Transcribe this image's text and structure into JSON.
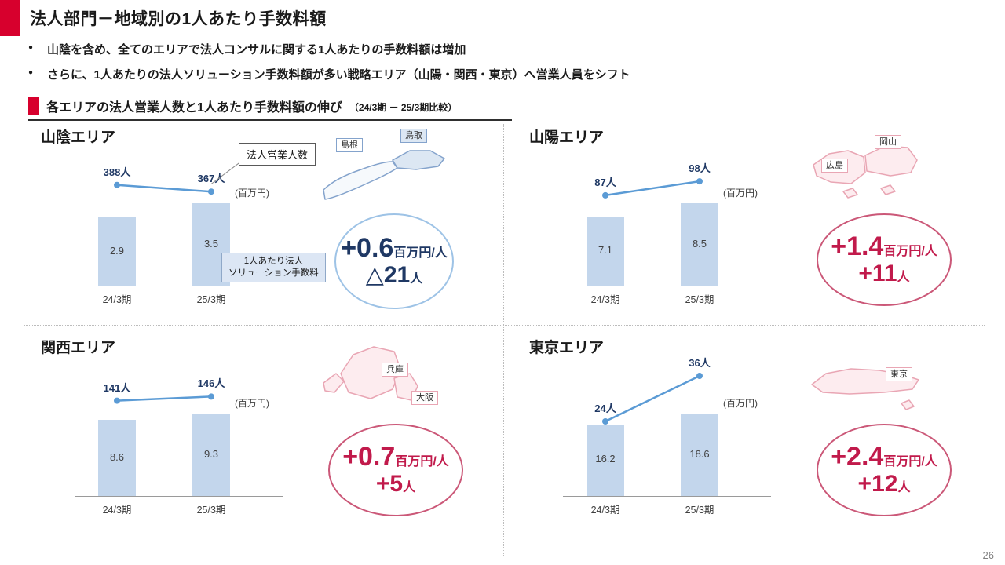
{
  "header": {
    "title": "法人部門－地域別の1人あたり手数料額",
    "bullets": [
      "山陰を含め、全てのエリアで法人コンサルに関する1人あたりの手数料額は増加",
      "さらに、1人あたりの法人ソリューション手数料額が多い戦略エリア（山陽・関西・東京）へ営業人員をシフト"
    ],
    "section_title": "各エリアの法人営業人数と1人あたり手数料額の伸び",
    "section_note": "（24/3期 － 25/3期比較）",
    "page_number": "26"
  },
  "colors": {
    "accent_red": "#d7002d",
    "annotation_red": "#c11a4b",
    "annotation_blue": "#1f3864",
    "bar_fill": "#c3d6ec",
    "line_blue": "#5b9bd5",
    "map_pink": "#fdecef",
    "map_blue": "#dce7f3"
  },
  "chart_data": [
    {
      "type": "bar+line",
      "area_title": "山陰エリア",
      "categories": [
        "24/3期",
        "25/3期"
      ],
      "staff": {
        "name": "法人営業人数",
        "unit": "人",
        "values": [
          388,
          367
        ],
        "labels": [
          "388人",
          "367人"
        ]
      },
      "fee": {
        "name": "1人あたり法人ソリューション手数料",
        "unit": "百万円",
        "values": [
          2.9,
          3.5
        ],
        "labels": [
          "2.9",
          "3.5"
        ]
      },
      "unit_label": "(百万円)",
      "annotation": {
        "value": "+0.6",
        "value_unit": "百万円/人",
        "delta": "△21",
        "delta_unit": "人",
        "theme": "blue"
      },
      "map": {
        "regions": [
          "島根",
          "鳥取"
        ],
        "theme": "blue"
      },
      "callouts": {
        "staff_box": "法人営業人数",
        "fee_box_line1": "1人あたり法人",
        "fee_box_line2": "ソリューション手数料"
      }
    },
    {
      "type": "bar+line",
      "area_title": "山陽エリア",
      "categories": [
        "24/3期",
        "25/3期"
      ],
      "staff": {
        "name": "法人営業人数",
        "unit": "人",
        "values": [
          87,
          98
        ],
        "labels": [
          "87人",
          "98人"
        ]
      },
      "fee": {
        "name": "1人あたり法人ソリューション手数料",
        "unit": "百万円",
        "values": [
          7.1,
          8.5
        ],
        "labels": [
          "7.1",
          "8.5"
        ]
      },
      "unit_label": "(百万円)",
      "annotation": {
        "value": "+1.4",
        "value_unit": "百万円/人",
        "delta": "+11",
        "delta_unit": "人",
        "theme": "red"
      },
      "map": {
        "regions": [
          "広島",
          "岡山"
        ],
        "theme": "pink"
      }
    },
    {
      "type": "bar+line",
      "area_title": "関西エリア",
      "categories": [
        "24/3期",
        "25/3期"
      ],
      "staff": {
        "name": "法人営業人数",
        "unit": "人",
        "values": [
          141,
          146
        ],
        "labels": [
          "141人",
          "146人"
        ]
      },
      "fee": {
        "name": "1人あたり法人ソリューション手数料",
        "unit": "百万円",
        "values": [
          8.6,
          9.3
        ],
        "labels": [
          "8.6",
          "9.3"
        ]
      },
      "unit_label": "(百万円)",
      "annotation": {
        "value": "+0.7",
        "value_unit": "百万円/人",
        "delta": "+5",
        "delta_unit": "人",
        "theme": "red"
      },
      "map": {
        "regions": [
          "兵庫",
          "大阪"
        ],
        "theme": "pink"
      }
    },
    {
      "type": "bar+line",
      "area_title": "東京エリア",
      "categories": [
        "24/3期",
        "25/3期"
      ],
      "staff": {
        "name": "法人営業人数",
        "unit": "人",
        "values": [
          24,
          36
        ],
        "labels": [
          "24人",
          "36人"
        ]
      },
      "fee": {
        "name": "1人あたり法人ソリューション手数料",
        "unit": "百万円",
        "values": [
          16.2,
          18.6
        ],
        "labels": [
          "16.2",
          "18.6"
        ]
      },
      "unit_label": "(百万円)",
      "annotation": {
        "value": "+2.4",
        "value_unit": "百万円/人",
        "delta": "+12",
        "delta_unit": "人",
        "theme": "red"
      },
      "map": {
        "regions": [
          "東京"
        ],
        "theme": "pink"
      }
    }
  ]
}
